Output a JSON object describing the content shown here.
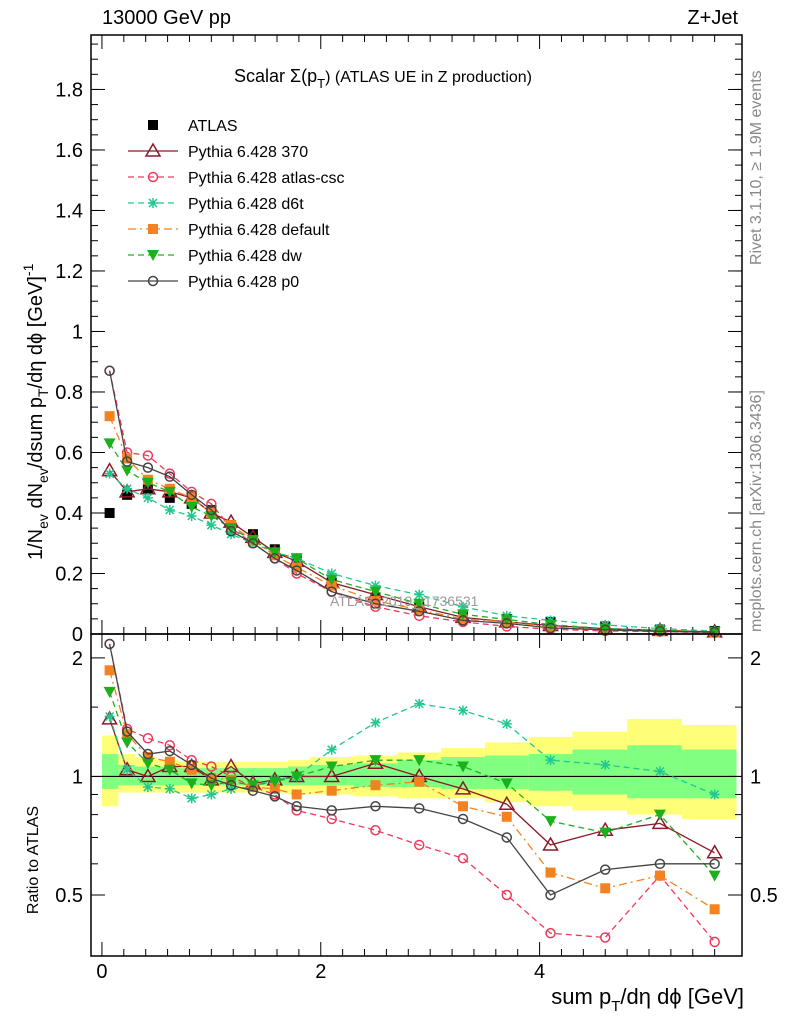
{
  "header": {
    "left": "13000 GeV pp",
    "right": "Z+Jet"
  },
  "side_text": {
    "right_top": "Rivet 3.1.10, ≥ 1.9M events",
    "right_bottom": "mcplots.cern.ch [arXiv:1306.3436]"
  },
  "watermark": "ATLAS_2019_I1736531",
  "legend_title": {
    "prefix": "Scalar Σ(p",
    "sub": "T",
    "suffix": ") (ATLAS UE in Z production)"
  },
  "colors": {
    "ratio_band_outer": "#ffff77",
    "ratio_band_inner": "#80ff80",
    "atlas": "#000000"
  },
  "chart_data": [
    {
      "type": "scatter",
      "panel": "main",
      "ylabel": "1/N_ev dN_ev/dsum p_T/dη dφ [GeV]^-1",
      "xlim": [
        -0.1,
        5.85
      ],
      "ylim": [
        0,
        1.98
      ],
      "yticks": [
        "0",
        "0.2",
        "0.4",
        "0.6",
        "0.8",
        "1",
        "1.2",
        "1.4",
        "1.6",
        "1.8"
      ],
      "grid": false,
      "legend_position": "top-left",
      "x": [
        0.07,
        0.23,
        0.42,
        0.62,
        0.82,
        1.0,
        1.18,
        1.38,
        1.58,
        1.78,
        2.1,
        2.5,
        2.9,
        3.3,
        3.7,
        4.1,
        4.6,
        5.1,
        5.6
      ],
      "series": [
        {
          "name": "ATLAS",
          "color": "#000000",
          "marker": "square",
          "dash": "none",
          "values": [
            0.4,
            0.46,
            0.48,
            0.45,
            0.43,
            0.41,
            0.36,
            0.33,
            0.28,
            0.25,
            0.17,
            0.12,
            0.09,
            0.06,
            0.05,
            0.04,
            0.025,
            0.015,
            0.01
          ]
        },
        {
          "name": "Pythia 6.428 370",
          "color": "#8b1a2a",
          "marker": "triangle-open",
          "dash": "solid",
          "values": [
            0.54,
            0.47,
            0.48,
            0.47,
            0.45,
            0.4,
            0.37,
            0.32,
            0.27,
            0.24,
            0.17,
            0.13,
            0.09,
            0.055,
            0.04,
            0.028,
            0.018,
            0.012,
            0.007
          ]
        },
        {
          "name": "Pythia 6.428 atlas-csc",
          "color": "#ee3a5a",
          "marker": "circle-open",
          "dash": "dashed",
          "values": [
            0.87,
            0.6,
            0.59,
            0.53,
            0.47,
            0.43,
            0.35,
            0.3,
            0.25,
            0.2,
            0.14,
            0.09,
            0.06,
            0.04,
            0.025,
            0.016,
            0.01,
            0.008,
            0.004
          ]
        },
        {
          "name": "Pythia 6.428 d6t",
          "color": "#20c890",
          "marker": "star",
          "dash": "dashed",
          "values": [
            0.53,
            0.48,
            0.45,
            0.41,
            0.39,
            0.36,
            0.33,
            0.3,
            0.27,
            0.25,
            0.2,
            0.16,
            0.13,
            0.09,
            0.06,
            0.045,
            0.03,
            0.018,
            0.01
          ]
        },
        {
          "name": "Pythia 6.428 default",
          "color": "#f58220",
          "marker": "square",
          "dash": "dashdot",
          "values": [
            0.72,
            0.58,
            0.51,
            0.48,
            0.45,
            0.4,
            0.36,
            0.31,
            0.26,
            0.22,
            0.16,
            0.11,
            0.08,
            0.05,
            0.04,
            0.023,
            0.013,
            0.009,
            0.005
          ]
        },
        {
          "name": "Pythia 6.428 dw",
          "color": "#1db01d",
          "marker": "triangle-down",
          "dash": "dashed",
          "values": [
            0.63,
            0.54,
            0.5,
            0.47,
            0.42,
            0.39,
            0.35,
            0.31,
            0.27,
            0.25,
            0.18,
            0.14,
            0.1,
            0.065,
            0.048,
            0.031,
            0.018,
            0.012,
            0.007
          ]
        },
        {
          "name": "Pythia 6.428 p0",
          "color": "#444444",
          "marker": "circle-open",
          "dash": "solid",
          "values": [
            0.87,
            0.57,
            0.55,
            0.52,
            0.46,
            0.41,
            0.34,
            0.3,
            0.25,
            0.21,
            0.14,
            0.1,
            0.075,
            0.045,
            0.035,
            0.02,
            0.014,
            0.009,
            0.006
          ]
        }
      ]
    },
    {
      "type": "line",
      "panel": "ratio",
      "xlabel": "sum p_T/dη dφ [GeV]",
      "ylabel": "Ratio to ATLAS",
      "xlim": [
        -0.1,
        5.85
      ],
      "ylim": [
        0.35,
        2.3
      ],
      "yticks": [
        "0.5",
        "1",
        "2"
      ],
      "xticks": [
        "0",
        "2",
        "4"
      ],
      "reference_line": 1,
      "bands": {
        "edges": [
          0,
          0.15,
          0.3,
          0.5,
          0.7,
          0.9,
          1.1,
          1.3,
          1.5,
          1.7,
          1.9,
          2.3,
          2.7,
          3.1,
          3.5,
          3.9,
          4.3,
          4.8,
          5.3,
          5.8
        ],
        "outer_low": [
          0.84,
          0.91,
          0.91,
          0.91,
          0.91,
          0.91,
          0.91,
          0.91,
          0.91,
          0.9,
          0.9,
          0.89,
          0.88,
          0.88,
          0.86,
          0.84,
          0.82,
          0.8,
          0.78
        ],
        "outer_high": [
          1.27,
          1.14,
          1.12,
          1.1,
          1.09,
          1.09,
          1.09,
          1.09,
          1.09,
          1.1,
          1.12,
          1.13,
          1.15,
          1.18,
          1.22,
          1.26,
          1.3,
          1.4,
          1.35
        ],
        "inner_low": [
          0.93,
          0.95,
          0.95,
          0.95,
          0.95,
          0.95,
          0.95,
          0.95,
          0.95,
          0.95,
          0.95,
          0.94,
          0.94,
          0.93,
          0.93,
          0.92,
          0.9,
          0.88,
          0.88
        ],
        "inner_high": [
          1.14,
          1.07,
          1.06,
          1.06,
          1.05,
          1.05,
          1.05,
          1.05,
          1.05,
          1.06,
          1.07,
          1.08,
          1.1,
          1.12,
          1.13,
          1.14,
          1.17,
          1.2,
          1.17
        ]
      },
      "x": [
        0.07,
        0.23,
        0.42,
        0.62,
        0.82,
        1.0,
        1.18,
        1.38,
        1.58,
        1.78,
        2.1,
        2.5,
        2.9,
        3.3,
        3.7,
        4.1,
        4.6,
        5.1,
        5.6
      ],
      "series": [
        {
          "name": "Pythia 6.428 370",
          "values": [
            1.4,
            1.04,
            1.0,
            1.06,
            1.06,
            0.98,
            1.06,
            0.96,
            0.98,
            1.0,
            1.0,
            1.08,
            1.0,
            0.93,
            0.85,
            0.67,
            0.73,
            0.76,
            0.64
          ]
        },
        {
          "name": "Pythia 6.428 atlas-csc",
          "values": [
            2.17,
            1.32,
            1.25,
            1.2,
            1.1,
            1.06,
            1.0,
            0.94,
            0.9,
            0.82,
            0.78,
            0.73,
            0.67,
            0.62,
            0.5,
            0.4,
            0.39,
            0.56,
            0.38
          ]
        },
        {
          "name": "Pythia 6.428 d6t",
          "values": [
            1.42,
            1.04,
            0.94,
            0.93,
            0.88,
            0.9,
            0.93,
            0.94,
            0.98,
            1.0,
            1.17,
            1.37,
            1.53,
            1.47,
            1.36,
            1.1,
            1.07,
            1.03,
            0.9
          ]
        },
        {
          "name": "Pythia 6.428 default",
          "values": [
            1.86,
            1.28,
            1.12,
            1.09,
            1.04,
            0.99,
            0.98,
            0.94,
            0.93,
            0.9,
            0.92,
            0.95,
            0.97,
            0.84,
            0.79,
            0.57,
            0.52,
            0.56,
            0.46
          ]
        },
        {
          "name": "Pythia 6.428 dw",
          "values": [
            1.64,
            1.22,
            1.08,
            1.04,
            0.96,
            0.95,
            0.97,
            0.95,
            0.97,
            1.0,
            1.06,
            1.1,
            1.1,
            1.06,
            0.96,
            0.77,
            0.72,
            0.8,
            0.56
          ]
        },
        {
          "name": "Pythia 6.428 p0",
          "values": [
            2.17,
            1.3,
            1.14,
            1.16,
            1.07,
            0.99,
            0.95,
            0.92,
            0.89,
            0.84,
            0.82,
            0.84,
            0.83,
            0.78,
            0.7,
            0.5,
            0.58,
            0.6,
            0.6
          ]
        }
      ]
    }
  ]
}
